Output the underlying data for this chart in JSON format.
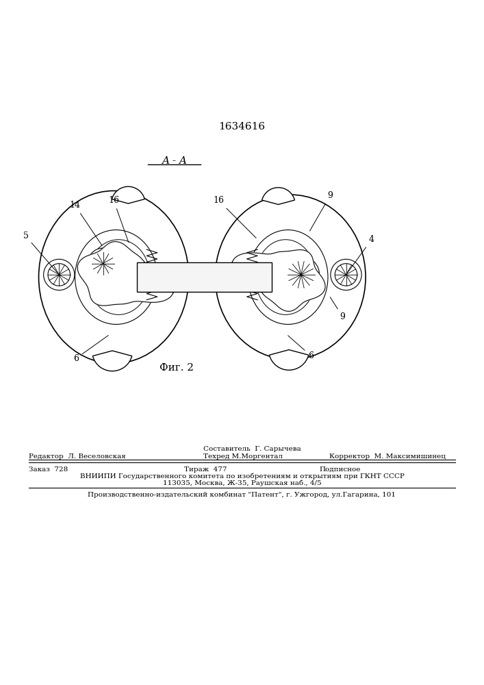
{
  "patent_number": "1634616",
  "section_label": "A - A",
  "figure_label": "Фиг. 2",
  "footer_last": "Производственно-издательский комбинат \"Патент\", г. Ужгород, ул.Гагарина, 101",
  "line_color": "#000000",
  "bg_color": "#ffffff"
}
